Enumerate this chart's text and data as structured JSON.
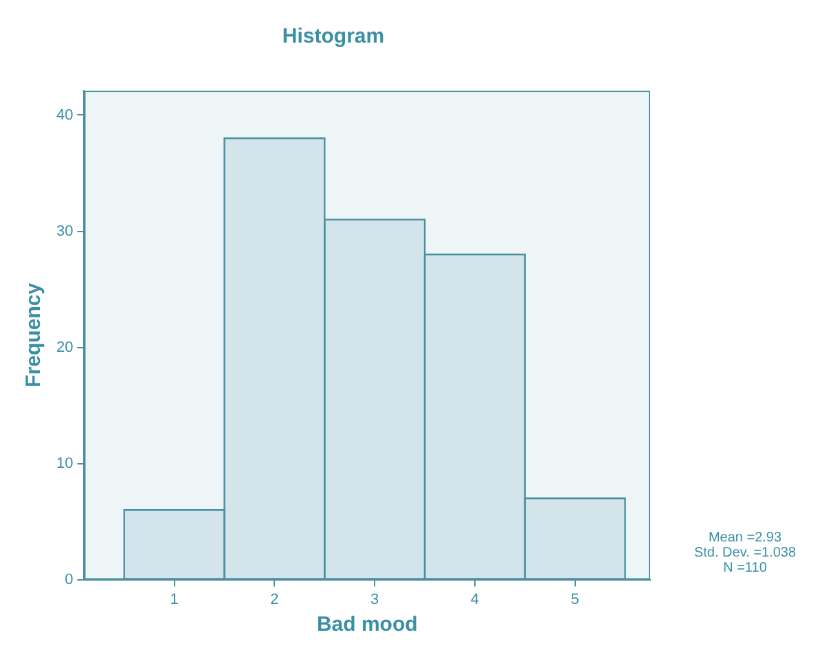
{
  "chart_data": {
    "type": "histogram",
    "title": "Histogram",
    "xlabel": "Bad mood",
    "ylabel": "Frequency",
    "bins": [
      0.5,
      1.5,
      2.5,
      3.5,
      4.5,
      5.5
    ],
    "values": [
      6,
      38,
      31,
      28,
      7
    ],
    "color": "#d3e5ea",
    "xlim": [
      0.1,
      5.75
    ],
    "xticks": [
      1,
      2,
      3,
      4,
      5
    ],
    "ylim": [
      0,
      42.1
    ],
    "yticks": [
      0,
      10,
      20,
      30,
      40
    ],
    "grid": false,
    "legend": false,
    "annotations": [
      "Mean =2.93",
      "Std. Dev. =1.038",
      "N =110"
    ]
  }
}
